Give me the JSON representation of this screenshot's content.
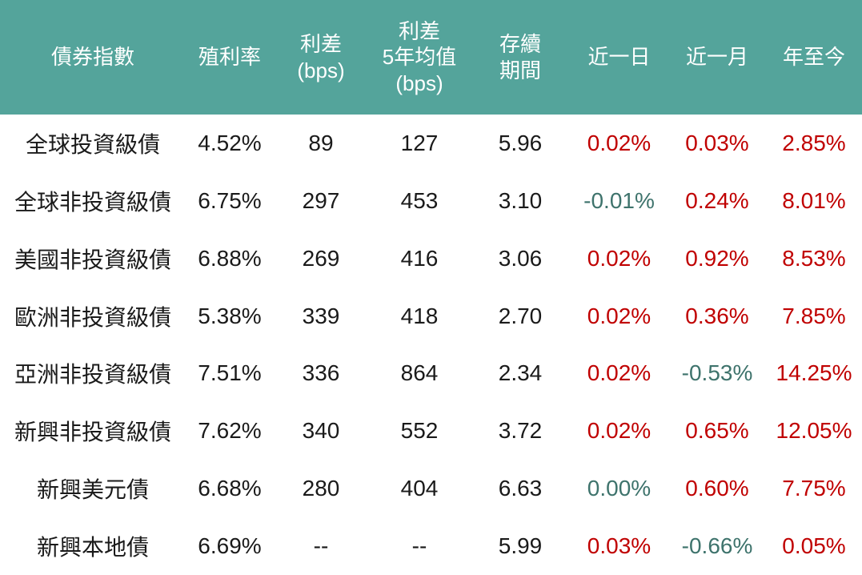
{
  "colors": {
    "header_bg": "#54A49B",
    "header_text": "#FFFFFF",
    "body_text": "#1A1A1A",
    "positive_red": "#C00000",
    "negative_teal": "#3E736C"
  },
  "chart_data": {
    "type": "table",
    "columns": [
      {
        "id": "name",
        "label": "債券指數"
      },
      {
        "id": "yield",
        "label": "殖利率"
      },
      {
        "id": "spread_bps",
        "label": "利差\n(bps)"
      },
      {
        "id": "spread_5y_avg_bps",
        "label": "利差\n5年均值\n(bps)"
      },
      {
        "id": "duration",
        "label": "存續\n期間"
      },
      {
        "id": "chg_1d",
        "label": "近一日"
      },
      {
        "id": "chg_1m",
        "label": "近一月"
      },
      {
        "id": "chg_ytd",
        "label": "年至今"
      }
    ],
    "rows": [
      {
        "name": "全球投資級債",
        "yield": "4.52%",
        "spread_bps": "89",
        "spread_5y_avg_bps": "127",
        "duration": "5.96",
        "chg_1d": "0.02%",
        "chg_1d_tone": "up",
        "chg_1m": "0.03%",
        "chg_1m_tone": "up",
        "chg_ytd": "2.85%",
        "chg_ytd_tone": "up"
      },
      {
        "name": "全球非投資級債",
        "yield": "6.75%",
        "spread_bps": "297",
        "spread_5y_avg_bps": "453",
        "duration": "3.10",
        "chg_1d": "-0.01%",
        "chg_1d_tone": "down",
        "chg_1m": "0.24%",
        "chg_1m_tone": "up",
        "chg_ytd": "8.01%",
        "chg_ytd_tone": "up"
      },
      {
        "name": "美國非投資級債",
        "yield": "6.88%",
        "spread_bps": "269",
        "spread_5y_avg_bps": "416",
        "duration": "3.06",
        "chg_1d": "0.02%",
        "chg_1d_tone": "up",
        "chg_1m": "0.92%",
        "chg_1m_tone": "up",
        "chg_ytd": "8.53%",
        "chg_ytd_tone": "up"
      },
      {
        "name": "歐洲非投資級債",
        "yield": "5.38%",
        "spread_bps": "339",
        "spread_5y_avg_bps": "418",
        "duration": "2.70",
        "chg_1d": "0.02%",
        "chg_1d_tone": "up",
        "chg_1m": "0.36%",
        "chg_1m_tone": "up",
        "chg_ytd": "7.85%",
        "chg_ytd_tone": "up"
      },
      {
        "name": "亞洲非投資級債",
        "yield": "7.51%",
        "spread_bps": "336",
        "spread_5y_avg_bps": "864",
        "duration": "2.34",
        "chg_1d": "0.02%",
        "chg_1d_tone": "up",
        "chg_1m": "-0.53%",
        "chg_1m_tone": "down",
        "chg_ytd": "14.25%",
        "chg_ytd_tone": "up"
      },
      {
        "name": "新興非投資級債",
        "yield": "7.62%",
        "spread_bps": "340",
        "spread_5y_avg_bps": "552",
        "duration": "3.72",
        "chg_1d": "0.02%",
        "chg_1d_tone": "up",
        "chg_1m": "0.65%",
        "chg_1m_tone": "up",
        "chg_ytd": "12.05%",
        "chg_ytd_tone": "up"
      },
      {
        "name": "新興美元債",
        "yield": "6.68%",
        "spread_bps": "280",
        "spread_5y_avg_bps": "404",
        "duration": "6.63",
        "chg_1d": "0.00%",
        "chg_1d_tone": "down",
        "chg_1m": "0.60%",
        "chg_1m_tone": "up",
        "chg_ytd": "7.75%",
        "chg_ytd_tone": "up"
      },
      {
        "name": "新興本地債",
        "yield": "6.69%",
        "spread_bps": "--",
        "spread_5y_avg_bps": "--",
        "duration": "5.99",
        "chg_1d": "0.03%",
        "chg_1d_tone": "up",
        "chg_1m": "-0.66%",
        "chg_1m_tone": "down",
        "chg_ytd": "0.05%",
        "chg_ytd_tone": "up"
      }
    ]
  }
}
